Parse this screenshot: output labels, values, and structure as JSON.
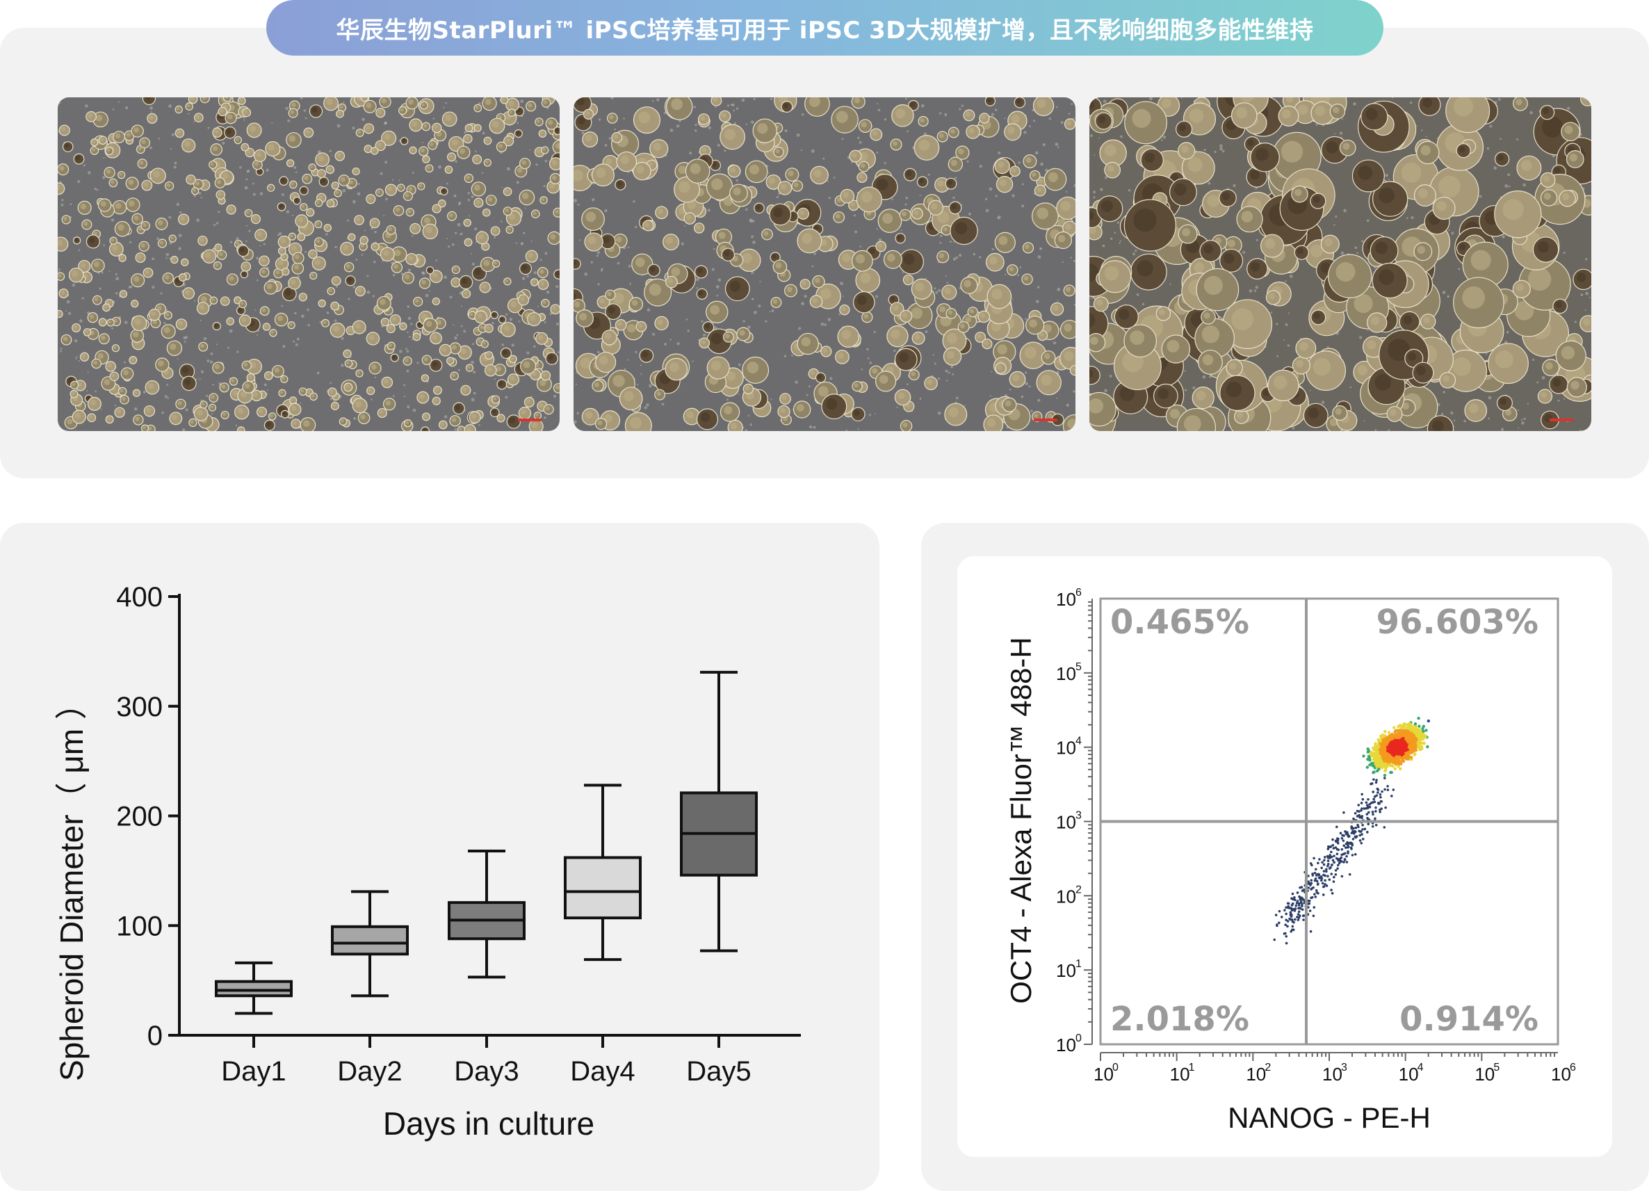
{
  "banner": {
    "title": "华辰生物StarPluri™ iPSC培养基可用于 iPSC 3D大规模扩增，且不影响细胞多能性维持"
  },
  "micrographs": [
    {
      "name": "day-early",
      "density": "small"
    },
    {
      "name": "day-mid",
      "density": "medium"
    },
    {
      "name": "day-late",
      "density": "large"
    }
  ],
  "colors": {
    "banner_start": "#8b9fd6",
    "banner_end": "#7fd2cc",
    "panel_bg": "#f2f2f3",
    "scale_bar": "#d9342b"
  },
  "chart_data": [
    {
      "type": "box",
      "xlabel": "Days in culture",
      "ylabel": "Spheroid Diameter（ μm ）",
      "ylim": [
        0,
        400
      ],
      "yticks": [
        "0",
        "100",
        "200",
        "300",
        "400"
      ],
      "categories": [
        "Day1",
        "Day2",
        "Day3",
        "Day4",
        "Day5"
      ],
      "boxes": [
        {
          "min": 20,
          "q1": 36,
          "median": 41,
          "q3": 49,
          "max": 66,
          "fill": "#a6a6a6"
        },
        {
          "min": 36,
          "q1": 74,
          "median": 84,
          "q3": 99,
          "max": 131,
          "fill": "#a6a6a6"
        },
        {
          "min": 53,
          "q1": 88,
          "median": 105,
          "q3": 121,
          "max": 168,
          "fill": "#7d7d7d"
        },
        {
          "min": 69,
          "q1": 107,
          "median": 131,
          "q3": 162,
          "max": 228,
          "fill": "#d9d9d9"
        },
        {
          "min": 77,
          "q1": 146,
          "median": 184,
          "q3": 221,
          "max": 331,
          "fill": "#6a6a6a"
        }
      ]
    },
    {
      "type": "scatter",
      "subtype": "flow-cytometry-density",
      "xlabel": "NANOG - PE-H",
      "ylabel": "OCT4 - Alexa Fluor™ 488-H",
      "xscale": "log",
      "yscale": "log",
      "xlim": [
        1,
        1000000
      ],
      "ylim": [
        1,
        1000000
      ],
      "ticks": [
        {
          "base": "10",
          "exp": "0"
        },
        {
          "base": "10",
          "exp": "1"
        },
        {
          "base": "10",
          "exp": "2"
        },
        {
          "base": "10",
          "exp": "3"
        },
        {
          "base": "10",
          "exp": "4"
        },
        {
          "base": "10",
          "exp": "5"
        },
        {
          "base": "10",
          "exp": "6"
        }
      ],
      "gate": {
        "x": 500,
        "y": 1000
      },
      "quadrants": {
        "top_left": "0.465%",
        "top_right": "96.603%",
        "bottom_left": "2.018%",
        "bottom_right": "0.914%"
      },
      "main_population_center": {
        "x": 8000,
        "y": 10000
      }
    }
  ]
}
